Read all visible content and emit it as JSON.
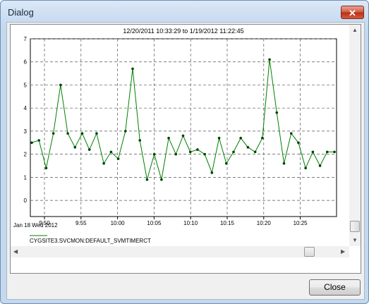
{
  "window": {
    "title": "Dialog"
  },
  "buttons": {
    "close_label": "Close"
  },
  "chart_data": {
    "type": "line",
    "title": "12/20/2011  10:33:29  to  1/19/2012  11:22:45",
    "x_ticks": [
      "9:50",
      "9:55",
      "10:00",
      "10:05",
      "10:10",
      "10:15",
      "10:20",
      "10:25"
    ],
    "x_sublabel": "Jan 18 Wed 2012",
    "y_ticks": [
      "0",
      "1",
      "2",
      "3",
      "4",
      "5",
      "6",
      "7"
    ],
    "ylim": [
      -0.7,
      7
    ],
    "grid": true,
    "series": [
      {
        "name": "CYGSITE3.SVCMON:DEFAULT_SVMTIMERCT",
        "color": "#008000",
        "values": [
          2.5,
          2.6,
          1.4,
          2.9,
          5.0,
          2.9,
          2.3,
          2.9,
          2.2,
          2.9,
          1.6,
          2.1,
          1.8,
          3.0,
          5.7,
          2.6,
          0.9,
          2.0,
          0.9,
          2.7,
          2.0,
          2.8,
          2.1,
          2.2,
          2.0,
          1.2,
          2.7,
          1.6,
          2.1,
          2.7,
          2.3,
          2.1,
          2.7,
          6.1,
          3.8,
          1.6,
          2.9,
          2.5,
          1.4,
          2.1,
          1.5,
          2.1,
          2.1
        ]
      }
    ]
  }
}
